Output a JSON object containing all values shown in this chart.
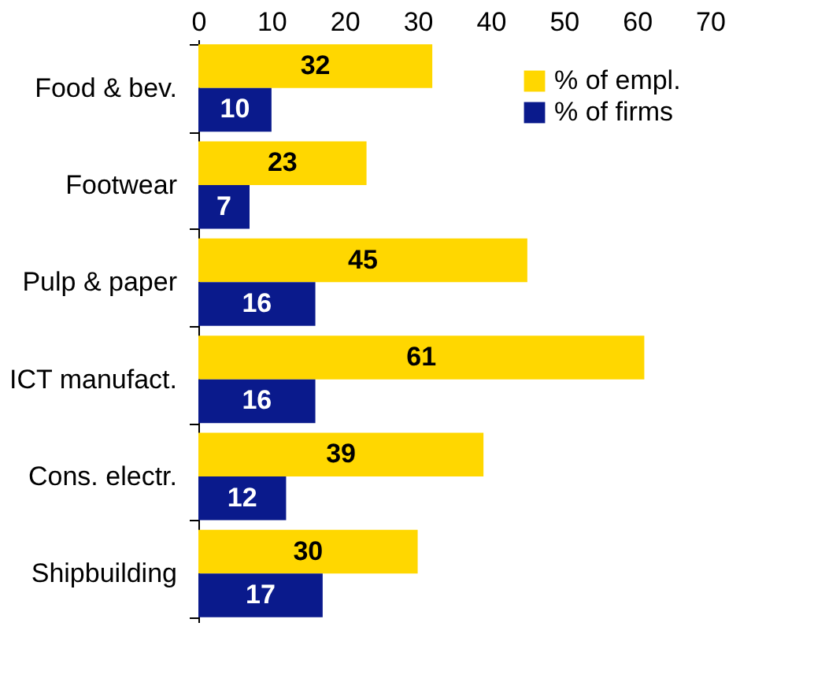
{
  "chart_data": {
    "type": "bar",
    "orientation": "horizontal",
    "categories": [
      "Food & bev.",
      "Footwear",
      "Pulp & paper",
      "ICT manufact.",
      "Cons. electr.",
      "Shipbuilding"
    ],
    "series": [
      {
        "name": "% of empl.",
        "color": "#ffd700",
        "values": [
          32,
          23,
          45,
          61,
          39,
          30
        ]
      },
      {
        "name": "% of firms",
        "color": "#0a1a8c",
        "values": [
          10,
          7,
          16,
          16,
          12,
          17
        ]
      }
    ],
    "xlim": [
      0,
      70
    ],
    "xticks": [
      0,
      10,
      20,
      30,
      40,
      50,
      60,
      70
    ],
    "data_labels": true,
    "grid": false,
    "legend": "top right"
  }
}
